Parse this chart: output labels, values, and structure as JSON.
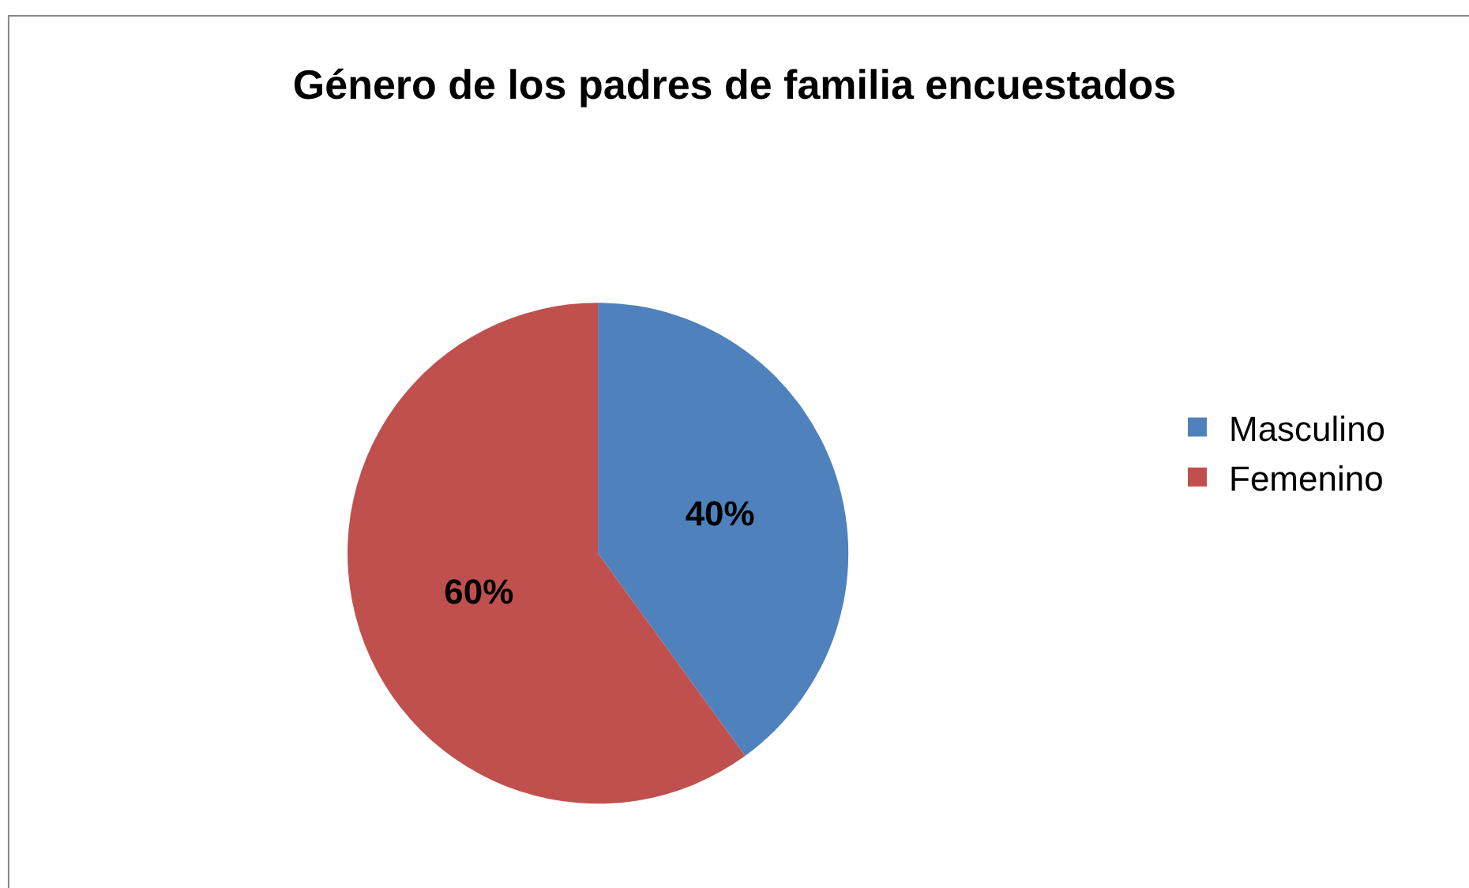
{
  "chart_data": {
    "type": "pie",
    "title": "Género de los padres de familia encuestados",
    "categories": [
      "Masculino",
      "Femenino"
    ],
    "values": [
      40,
      60
    ],
    "colors": [
      "#4f81bd",
      "#c0504d"
    ],
    "value_labels": [
      "40%",
      "60%"
    ],
    "legend": "right"
  }
}
